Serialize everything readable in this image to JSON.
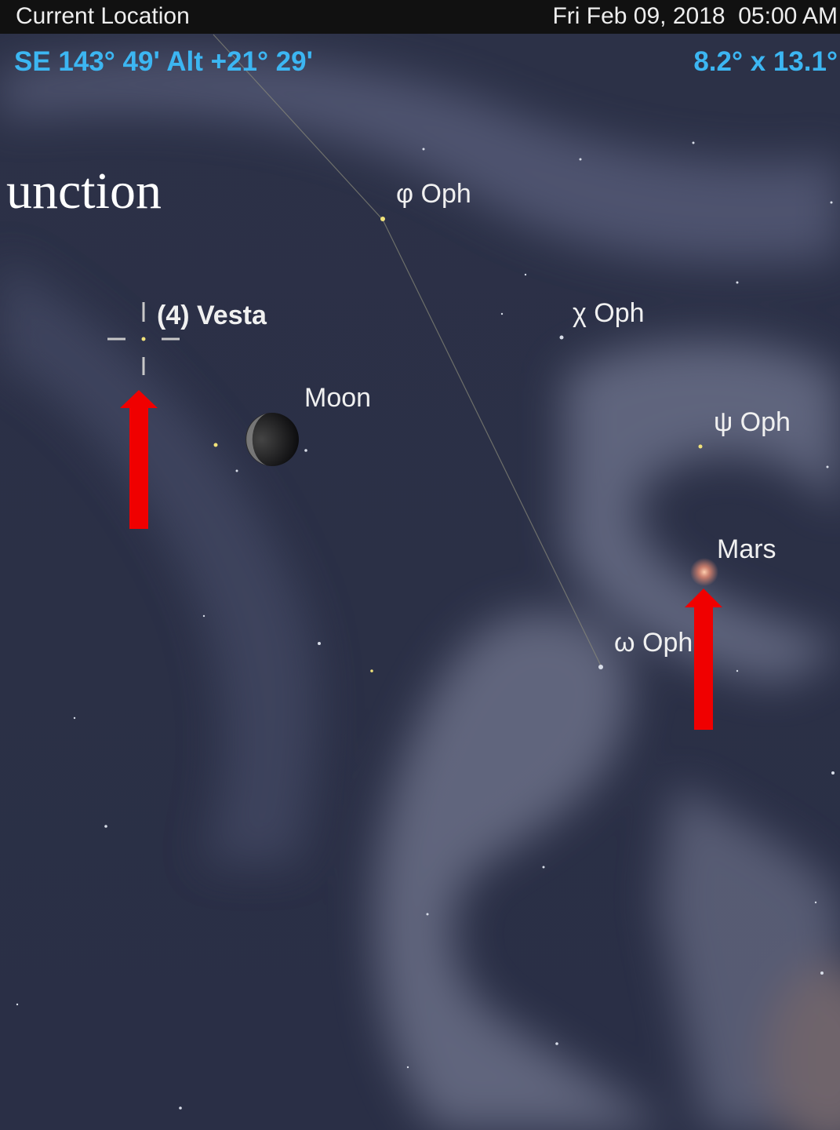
{
  "header": {
    "location": "Current Location",
    "datetime": "Fri Feb 09, 2018  05:00 AM",
    "pointing": "SE 143° 49' Alt +21° 29'",
    "field_of_view": "8.2° x 13.1°"
  },
  "overlay_text": "unction",
  "labels": {
    "phi_oph": "φ Oph",
    "vesta": "(4) Vesta",
    "chi_oph": "χ Oph",
    "moon": "Moon",
    "psi_oph": "ψ Oph",
    "mars": "Mars",
    "omega_oph": "ω Oph"
  }
}
